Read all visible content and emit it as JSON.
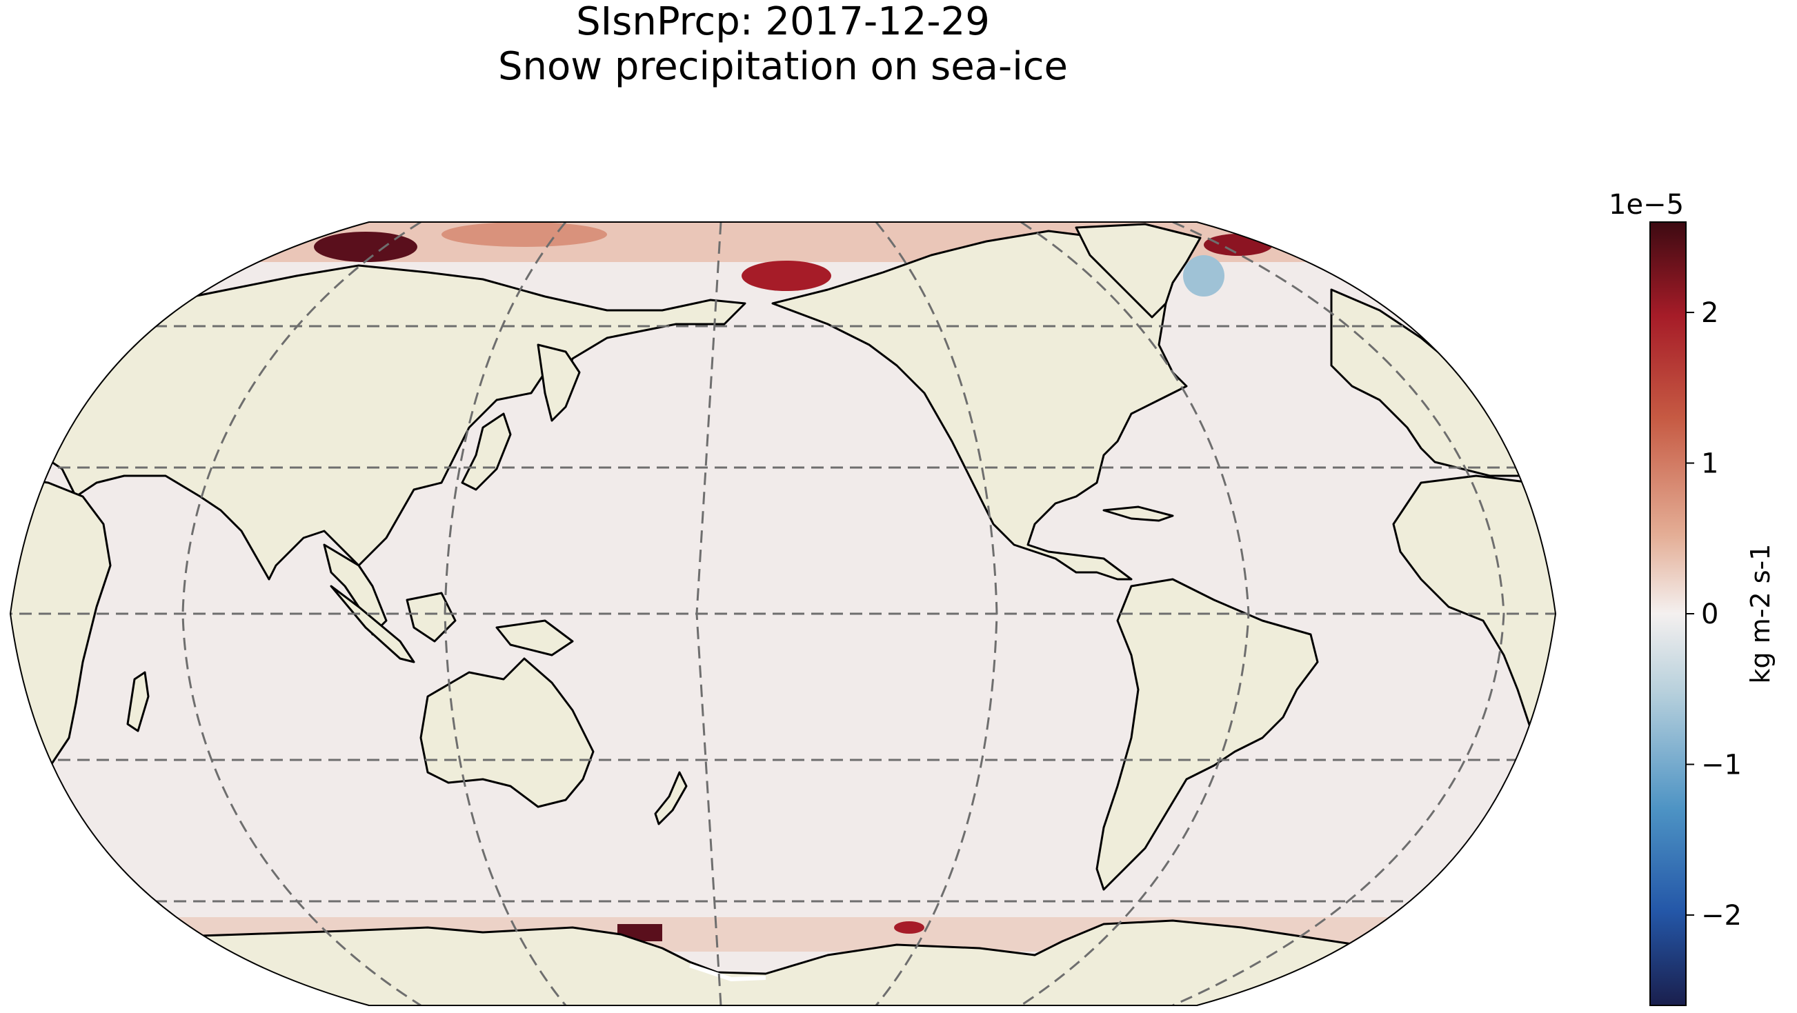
{
  "title": {
    "line1": "SIsnPrcp: 2017-12-29",
    "line2": "Snow precipitation on sea-ice"
  },
  "colorbar": {
    "label": "kg m-2 s-1",
    "multiplier": "1e−5",
    "range": [
      -2.6,
      2.6
    ],
    "ticks": [
      {
        "value": 2,
        "label": "2"
      },
      {
        "value": 1,
        "label": "1"
      },
      {
        "value": 0,
        "label": "0"
      },
      {
        "value": -1,
        "label": "−1"
      },
      {
        "value": -2,
        "label": "−2"
      }
    ],
    "colormap": [
      "#1a1f4d",
      "#2457a8",
      "#4d93c4",
      "#b7d0dc",
      "#f4f0ef",
      "#e4ae96",
      "#c65a43",
      "#a61c28",
      "#3d0a12"
    ]
  },
  "map": {
    "projection": "Robinson",
    "central_longitude": 180,
    "gridlines": "dashed",
    "land_color": "#efedda",
    "ocean_color": "#f1ebea"
  }
}
